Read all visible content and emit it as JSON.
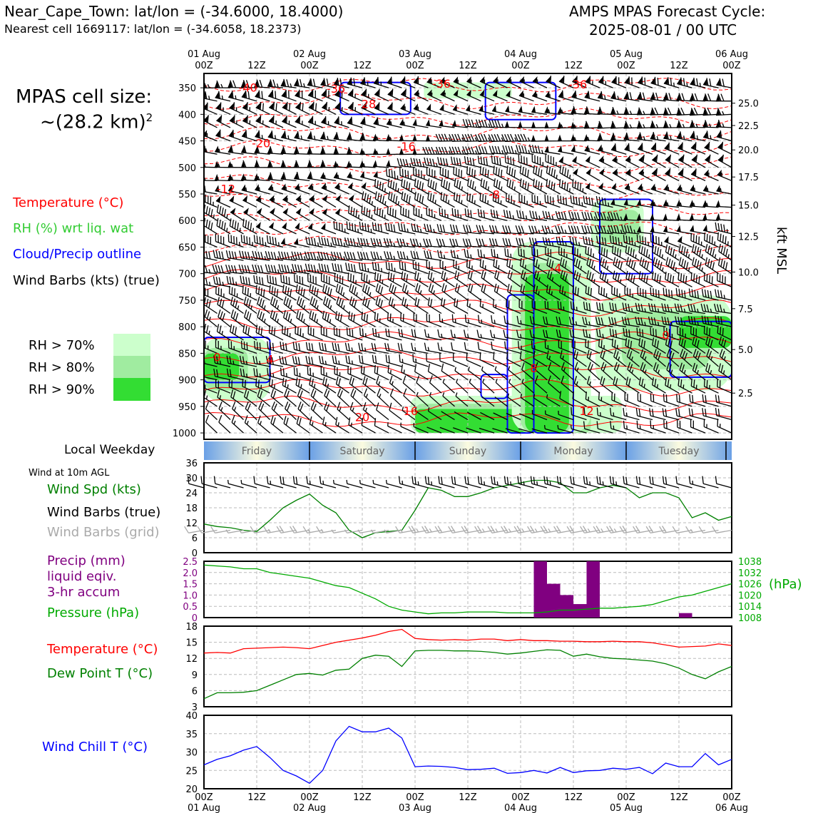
{
  "header": {
    "title_line1": "Near_Cape_Town: lat/lon = (-34.6000, 18.4000)",
    "title_line2": "Nearest cell 1669117: lat/lon = (-34.6058, 18.2373)",
    "cycle_line1": "AMPS MPAS Forecast Cycle:",
    "cycle_line2": "2025-08-01 / 00 UTC"
  },
  "legend": {
    "cell_size_label": "MPAS cell size:",
    "cell_size_value": "~(28.2 km)",
    "cell_size_exp": "2",
    "temperature": "Temperature (°C)",
    "rh": "RH (%) wrt liq. wat",
    "cloud": "Cloud/Precip outline",
    "barbs": "Wind Barbs (kts) (true)",
    "rh70": "RH > 70%",
    "rh80": "RH > 80%",
    "rh90": "RH > 90%",
    "weekday_title": "Local Weekday",
    "wind10m_title": "Wind at 10m AGL",
    "wind_spd": "Wind Spd (kts)",
    "wind_barbs_true": "Wind Barbs (true)",
    "wind_barbs_grid": "Wind Barbs (grid)",
    "precip_1": "Precip (mm)",
    "precip_2": "liquid eqiv.",
    "precip_3": "3-hr accum",
    "pressure": "Pressure (hPa)",
    "pressure_unit": "(hPa)",
    "temp2": "Temperature (°C)",
    "dewpoint": "Dew Point T (°C)",
    "windchill": "Wind Chill T (°C)",
    "kft": "kft MSL"
  },
  "colors": {
    "temperature": "#ff0000",
    "rh": "#33cc33",
    "cloud": "#0000ff",
    "barbs": "#000000",
    "barbs_grid": "#aaaaaa",
    "wind_spd": "#008000",
    "precip": "#800080",
    "pressure": "#00aa00",
    "dewpoint": "#008000",
    "windchill": "#0000ff",
    "rh70": "#ccffcc",
    "rh80": "#a0eca0",
    "rh90": "#33dd33"
  },
  "time_axis": {
    "top_labels": [
      {
        "l1": "01 Aug",
        "l2": "00Z"
      },
      {
        "l1": "",
        "l2": "12Z"
      },
      {
        "l1": "02 Aug",
        "l2": "00Z"
      },
      {
        "l1": "",
        "l2": "12Z"
      },
      {
        "l1": "03 Aug",
        "l2": "00Z"
      },
      {
        "l1": "",
        "l2": "12Z"
      },
      {
        "l1": "04 Aug",
        "l2": "00Z"
      },
      {
        "l1": "",
        "l2": "12Z"
      },
      {
        "l1": "05 Aug",
        "l2": "00Z"
      },
      {
        "l1": "",
        "l2": "12Z"
      },
      {
        "l1": "06 Aug",
        "l2": "00Z"
      }
    ],
    "bottom_labels": [
      {
        "l1": "00Z",
        "l2": "01 Aug"
      },
      {
        "l1": "12Z",
        "l2": ""
      },
      {
        "l1": "00Z",
        "l2": "02 Aug"
      },
      {
        "l1": "12Z",
        "l2": ""
      },
      {
        "l1": "00Z",
        "l2": "03 Aug"
      },
      {
        "l1": "12Z",
        "l2": ""
      },
      {
        "l1": "00Z",
        "l2": "04 Aug"
      },
      {
        "l1": "12Z",
        "l2": ""
      },
      {
        "l1": "00Z",
        "l2": "05 Aug"
      },
      {
        "l1": "12Z",
        "l2": ""
      },
      {
        "l1": "00Z",
        "l2": "06 Aug"
      }
    ],
    "weekdays": [
      "Friday",
      "Saturday",
      "Sunday",
      "Monday",
      "Tuesday"
    ]
  },
  "chart_data": [
    {
      "type": "heatmap",
      "x_range_hours": [
        0,
        120
      ],
      "pressure_levels": [
        "350",
        "400",
        "450",
        "500",
        "550",
        "600",
        "650",
        "700",
        "750",
        "800",
        "850",
        "900",
        "950",
        "1000"
      ],
      "height_ticks": [
        "25.0",
        "22.5",
        "20.0",
        "17.5",
        "15.0",
        "12.5",
        "10.0",
        "7.5",
        "5.0",
        "2.5"
      ],
      "height_tick_pressures": [
        379,
        421,
        467,
        518,
        571,
        630,
        697,
        766,
        843,
        925
      ],
      "temperature_contour_labels": [
        {
          "text": "-40",
          "t": 10,
          "p": 357
        },
        {
          "text": "-36",
          "t": 30,
          "p": 359
        },
        {
          "text": "-36",
          "t": 54,
          "p": 350
        },
        {
          "text": "-36",
          "t": 85,
          "p": 351
        },
        {
          "text": "-28",
          "t": 37,
          "p": 388
        },
        {
          "text": "-20",
          "t": 13,
          "p": 462
        },
        {
          "text": "-16",
          "t": 46,
          "p": 468
        },
        {
          "text": "-12",
          "t": 5,
          "p": 548
        },
        {
          "text": "-8",
          "t": 66,
          "p": 559
        },
        {
          "text": "-4",
          "t": 80,
          "p": 697
        },
        {
          "text": "0",
          "t": 3,
          "p": 865
        },
        {
          "text": "4",
          "t": 15,
          "p": 869
        },
        {
          "text": "8",
          "t": 75,
          "p": 886
        },
        {
          "text": "0",
          "t": 105,
          "p": 823
        },
        {
          "text": "12",
          "t": 87,
          "p": 966
        },
        {
          "text": "16",
          "t": 47,
          "p": 966
        },
        {
          "text": "20",
          "t": 36,
          "p": 978
        }
      ],
      "rh_regions": [
        {
          "level": 70,
          "t": [
            0,
            15
          ],
          "p": [
            820,
            940
          ]
        },
        {
          "level": 80,
          "t": [
            0,
            10
          ],
          "p": [
            840,
            920
          ]
        },
        {
          "level": 90,
          "t": [
            0,
            8
          ],
          "p": [
            850,
            900
          ]
        },
        {
          "level": 70,
          "t": [
            47,
            95
          ],
          "p": [
            930,
            1000
          ]
        },
        {
          "level": 80,
          "t": [
            48,
            88
          ],
          "p": [
            945,
            1000
          ]
        },
        {
          "level": 90,
          "t": [
            48,
            84
          ],
          "p": [
            955,
            1000
          ]
        },
        {
          "level": 70,
          "t": [
            70,
            88
          ],
          "p": [
            640,
            1000
          ]
        },
        {
          "level": 80,
          "t": [
            72,
            84
          ],
          "p": [
            680,
            1000
          ]
        },
        {
          "level": 90,
          "t": [
            73,
            83
          ],
          "p": [
            700,
            1000
          ]
        },
        {
          "level": 70,
          "t": [
            89,
            120
          ],
          "p": [
            740,
            920
          ]
        },
        {
          "level": 80,
          "t": [
            95,
            115
          ],
          "p": [
            770,
            880
          ]
        },
        {
          "level": 90,
          "t": [
            108,
            120
          ],
          "p": [
            780,
            840
          ]
        },
        {
          "level": 70,
          "t": [
            88,
            100
          ],
          "p": [
            560,
            660
          ]
        },
        {
          "level": 80,
          "t": [
            90,
            99
          ],
          "p": [
            580,
            640
          ]
        },
        {
          "level": 70,
          "t": [
            50,
            70
          ],
          "p": [
            340,
            370
          ]
        }
      ],
      "cloud_outlines": [
        {
          "t": [
            0,
            15
          ],
          "p": [
            820,
            905
          ]
        },
        {
          "t": [
            63,
            69
          ],
          "p": [
            890,
            935
          ]
        },
        {
          "t": [
            69,
            75
          ],
          "p": [
            740,
            1000
          ]
        },
        {
          "t": [
            75,
            84
          ],
          "p": [
            640,
            1000
          ]
        },
        {
          "t": [
            90,
            102
          ],
          "p": [
            560,
            700
          ]
        },
        {
          "t": [
            106,
            120
          ],
          "p": [
            790,
            895
          ]
        },
        {
          "t": [
            31,
            47
          ],
          "p": [
            340,
            400
          ]
        },
        {
          "t": [
            64,
            80
          ],
          "p": [
            340,
            410
          ]
        }
      ],
      "wind": {
        "850hPa_speed_kts_by_day": [
          20,
          15,
          25,
          28,
          25,
          15
        ]
      }
    },
    {
      "type": "line",
      "title": "Wind at 10m AGL",
      "x": [
        0,
        3,
        6,
        9,
        12,
        15,
        18,
        21,
        24,
        27,
        30,
        33,
        36,
        39,
        42,
        45,
        48,
        51,
        54,
        57,
        60,
        63,
        66,
        69,
        72,
        75,
        78,
        81,
        84,
        87,
        90,
        93,
        96,
        99,
        102,
        105,
        108,
        111,
        114,
        117,
        120
      ],
      "series": [
        {
          "name": "Wind Spd (kts)",
          "values": [
            11.5,
            10.5,
            10,
            9,
            8.5,
            13,
            18,
            21,
            23.5,
            19,
            16,
            9,
            6,
            8,
            8.5,
            9,
            17,
            26,
            25,
            22.5,
            22.5,
            24,
            26,
            27,
            28,
            29,
            29,
            28,
            24,
            24,
            26,
            27,
            26,
            22,
            24,
            24,
            22,
            14,
            16,
            13,
            14.5
          ]
        }
      ],
      "ylim": [
        0,
        36
      ],
      "yticks": [
        0,
        6,
        12,
        18,
        24,
        30,
        36
      ]
    },
    {
      "type": "bar",
      "title": "Precip (mm) liquid eqiv. 3-hr accum",
      "x": [
        75,
        78,
        81,
        84,
        87
      ],
      "values": [
        2.5,
        1.5,
        1.0,
        0.6,
        2.5
      ],
      "extra": [
        {
          "x": 108,
          "value": 0.2
        }
      ],
      "ylim": [
        0,
        2.5
      ],
      "yticks": [
        "0",
        "0.5",
        "1.0",
        "1.5",
        "2.0",
        "2.5"
      ],
      "pressure_series": {
        "name": "Pressure (hPa)",
        "x": [
          0,
          3,
          6,
          9,
          12,
          15,
          18,
          21,
          24,
          27,
          30,
          33,
          36,
          39,
          42,
          45,
          48,
          51,
          54,
          57,
          60,
          63,
          66,
          69,
          72,
          75,
          78,
          81,
          84,
          87,
          90,
          93,
          96,
          99,
          102,
          105,
          108,
          111,
          114,
          117,
          120
        ],
        "values": [
          1036,
          1035.5,
          1035,
          1034,
          1034,
          1032,
          1031,
          1030,
          1029,
          1027,
          1025,
          1024,
          1021,
          1018,
          1014,
          1012,
          1011,
          1010,
          1010.5,
          1010.5,
          1011,
          1011,
          1011,
          1010.5,
          1010.5,
          1010.5,
          1011,
          1012,
          1012,
          1012.5,
          1013,
          1013,
          1013.5,
          1014,
          1015,
          1017,
          1019,
          1020,
          1022,
          1024,
          1026
        ],
        "ylim": [
          1008,
          1038
        ],
        "yticks": [
          "1008",
          "1014",
          "1020",
          "1026",
          "1032",
          "1038"
        ]
      }
    },
    {
      "type": "line",
      "x": [
        0,
        3,
        6,
        9,
        12,
        15,
        18,
        21,
        24,
        27,
        30,
        33,
        36,
        39,
        42,
        45,
        48,
        51,
        54,
        57,
        60,
        63,
        66,
        69,
        72,
        75,
        78,
        81,
        84,
        87,
        90,
        93,
        96,
        99,
        102,
        105,
        108,
        111,
        114,
        117,
        120
      ],
      "series": [
        {
          "name": "Temperature (°C)",
          "values": [
            13,
            13.1,
            13,
            13.8,
            13.9,
            14,
            14.1,
            14,
            13.8,
            14.4,
            15,
            15.4,
            15.8,
            16.3,
            17,
            17.4,
            15.7,
            15.5,
            15.4,
            15.5,
            15.4,
            15.6,
            15.6,
            15.3,
            15.5,
            15.3,
            15.3,
            15.2,
            15.2,
            15.1,
            15.1,
            15.2,
            15.1,
            15.1,
            14.9,
            14.5,
            14.1,
            14.2,
            14.3,
            14.7,
            14.4
          ]
        },
        {
          "name": "Dew Point T (°C)",
          "values": [
            4.5,
            5.6,
            5.6,
            5.7,
            6,
            7,
            8,
            9,
            9.2,
            8.9,
            9.8,
            10,
            12,
            12.6,
            12.4,
            10.5,
            13.4,
            13.5,
            13.5,
            13.4,
            13.4,
            13.3,
            13.1,
            12.8,
            13,
            13.3,
            13.6,
            13.5,
            12.4,
            12.8,
            12.3,
            12,
            11.9,
            11.7,
            11.5,
            11,
            10.2,
            9,
            8.2,
            9.5,
            10.5
          ]
        }
      ],
      "ylim": [
        3,
        18
      ],
      "yticks": [
        3,
        6,
        9,
        12,
        15,
        18
      ]
    },
    {
      "type": "line",
      "x": [
        0,
        3,
        6,
        9,
        12,
        15,
        18,
        21,
        24,
        27,
        30,
        33,
        36,
        39,
        42,
        45,
        48,
        51,
        54,
        57,
        60,
        63,
        66,
        69,
        72,
        75,
        78,
        81,
        84,
        87,
        90,
        93,
        96,
        99,
        102,
        105,
        108,
        111,
        114,
        117,
        120
      ],
      "series": [
        {
          "name": "Wind Chill T (°C)",
          "values": [
            26.5,
            28,
            29,
            30.5,
            31.5,
            28.5,
            25,
            23.5,
            21.5,
            25,
            33,
            37,
            35.5,
            35.5,
            36.5,
            33.8,
            26,
            26.2,
            26.1,
            25.8,
            25.2,
            25.3,
            25.6,
            24.2,
            24.4,
            25,
            24.3,
            25.8,
            24.4,
            24.9,
            25,
            25.6,
            25.3,
            25.8,
            24.1,
            27,
            26,
            26,
            29.6,
            26.5,
            28
          ]
        }
      ],
      "ylim": [
        20,
        40
      ],
      "yticks": [
        20,
        25,
        30,
        35,
        40
      ]
    }
  ]
}
